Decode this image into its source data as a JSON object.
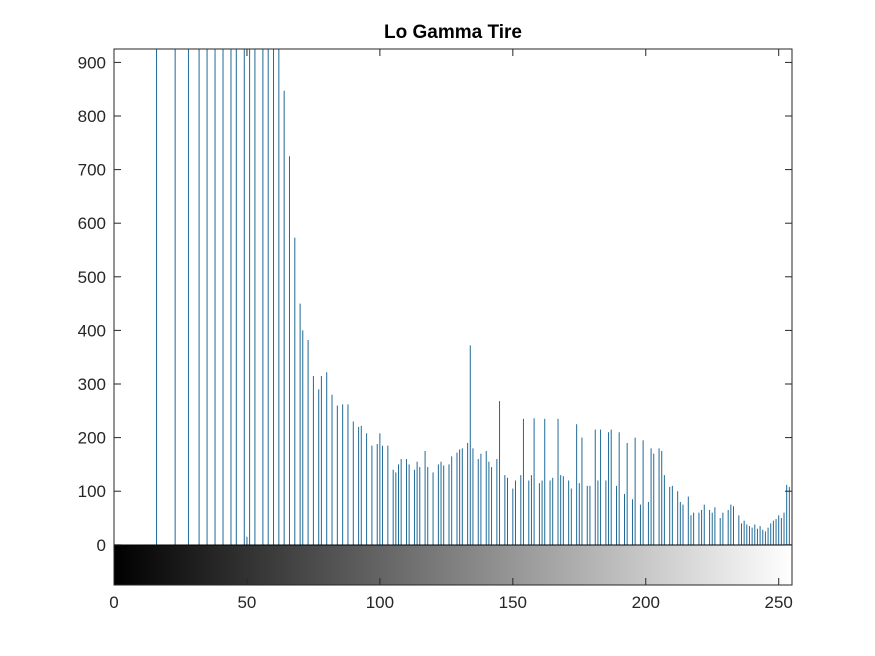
{
  "chart_data": {
    "type": "bar",
    "title": "Lo Gamma Tire",
    "xlabel": "",
    "ylabel": "",
    "xlim": [
      0,
      255
    ],
    "ylim": [
      -75,
      925
    ],
    "xticks": [
      0,
      50,
      100,
      150,
      200,
      250
    ],
    "yticks": [
      0,
      100,
      200,
      300,
      400,
      500,
      600,
      700,
      800,
      900
    ],
    "grid": false,
    "legend": "none",
    "colorbar": {
      "type": "grayscale",
      "range": [
        0,
        255
      ],
      "from": "#000000",
      "to": "#ffffff"
    },
    "colors": {
      "bars": "#1f6a96",
      "axes": "#262626",
      "background": "#ffffff"
    },
    "series": [
      {
        "values": [
          [
            0,
            476
          ],
          [
            16,
            925
          ],
          [
            23,
            925
          ],
          [
            28,
            925
          ],
          [
            32,
            925
          ],
          [
            35,
            925
          ],
          [
            38,
            925
          ],
          [
            41,
            925
          ],
          [
            44,
            925
          ],
          [
            46,
            925
          ],
          [
            49,
            925
          ],
          [
            50,
            15
          ],
          [
            51,
            925
          ],
          [
            53,
            925
          ],
          [
            56,
            925
          ],
          [
            58,
            925
          ],
          [
            60,
            925
          ],
          [
            62,
            925
          ],
          [
            64,
            847
          ],
          [
            66,
            725
          ],
          [
            68,
            573
          ],
          [
            70,
            450
          ],
          [
            71,
            400
          ],
          [
            73,
            382
          ],
          [
            75,
            315
          ],
          [
            77,
            290
          ],
          [
            78,
            315
          ],
          [
            80,
            322
          ],
          [
            82,
            280
          ],
          [
            84,
            260
          ],
          [
            86,
            262
          ],
          [
            88,
            262
          ],
          [
            90,
            230
          ],
          [
            92,
            220
          ],
          [
            93,
            222
          ],
          [
            95,
            208
          ],
          [
            97,
            185
          ],
          [
            99,
            188
          ],
          [
            100,
            208
          ],
          [
            101,
            185
          ],
          [
            103,
            185
          ],
          [
            105,
            140
          ],
          [
            106,
            135
          ],
          [
            107,
            150
          ],
          [
            108,
            160
          ],
          [
            110,
            160
          ],
          [
            111,
            150
          ],
          [
            113,
            140
          ],
          [
            114,
            155
          ],
          [
            115,
            145
          ],
          [
            117,
            175
          ],
          [
            118,
            145
          ],
          [
            120,
            135
          ],
          [
            122,
            150
          ],
          [
            123,
            155
          ],
          [
            124,
            148
          ],
          [
            126,
            150
          ],
          [
            127,
            165
          ],
          [
            129,
            172
          ],
          [
            130,
            178
          ],
          [
            131,
            180
          ],
          [
            133,
            190
          ],
          [
            134,
            372
          ],
          [
            135,
            180
          ],
          [
            137,
            160
          ],
          [
            138,
            170
          ],
          [
            140,
            175
          ],
          [
            141,
            155
          ],
          [
            142,
            145
          ],
          [
            144,
            160
          ],
          [
            145,
            268
          ],
          [
            147,
            130
          ],
          [
            148,
            125
          ],
          [
            150,
            105
          ],
          [
            151,
            120
          ],
          [
            153,
            130
          ],
          [
            154,
            235
          ],
          [
            156,
            120
          ],
          [
            157,
            130
          ],
          [
            158,
            236
          ],
          [
            160,
            115
          ],
          [
            161,
            120
          ],
          [
            162,
            235
          ],
          [
            164,
            120
          ],
          [
            165,
            125
          ],
          [
            167,
            235
          ],
          [
            168,
            130
          ],
          [
            169,
            128
          ],
          [
            171,
            120
          ],
          [
            172,
            105
          ],
          [
            174,
            225
          ],
          [
            175,
            115
          ],
          [
            176,
            200
          ],
          [
            178,
            110
          ],
          [
            179,
            110
          ],
          [
            181,
            215
          ],
          [
            182,
            120
          ],
          [
            183,
            215
          ],
          [
            185,
            120
          ],
          [
            186,
            210
          ],
          [
            187,
            215
          ],
          [
            189,
            110
          ],
          [
            190,
            210
          ],
          [
            192,
            95
          ],
          [
            193,
            190
          ],
          [
            195,
            85
          ],
          [
            196,
            200
          ],
          [
            198,
            75
          ],
          [
            199,
            195
          ],
          [
            201,
            80
          ],
          [
            202,
            180
          ],
          [
            203,
            170
          ],
          [
            205,
            180
          ],
          [
            206,
            175
          ],
          [
            207,
            130
          ],
          [
            209,
            108
          ],
          [
            210,
            110
          ],
          [
            212,
            100
          ],
          [
            213,
            80
          ],
          [
            214,
            75
          ],
          [
            216,
            90
          ],
          [
            217,
            55
          ],
          [
            218,
            60
          ],
          [
            220,
            60
          ],
          [
            221,
            65
          ],
          [
            222,
            75
          ],
          [
            224,
            65
          ],
          [
            225,
            60
          ],
          [
            226,
            70
          ],
          [
            228,
            50
          ],
          [
            229,
            60
          ],
          [
            231,
            65
          ],
          [
            232,
            75
          ],
          [
            233,
            72
          ],
          [
            235,
            55
          ],
          [
            236,
            40
          ],
          [
            237,
            45
          ],
          [
            238,
            38
          ],
          [
            239,
            35
          ],
          [
            240,
            32
          ],
          [
            241,
            38
          ],
          [
            242,
            30
          ],
          [
            243,
            35
          ],
          [
            244,
            28
          ],
          [
            245,
            25
          ],
          [
            246,
            32
          ],
          [
            247,
            40
          ],
          [
            248,
            45
          ],
          [
            249,
            48
          ],
          [
            250,
            55
          ],
          [
            251,
            50
          ],
          [
            252,
            60
          ],
          [
            253,
            112
          ],
          [
            254,
            108
          ],
          [
            255,
            300
          ]
        ]
      }
    ]
  }
}
